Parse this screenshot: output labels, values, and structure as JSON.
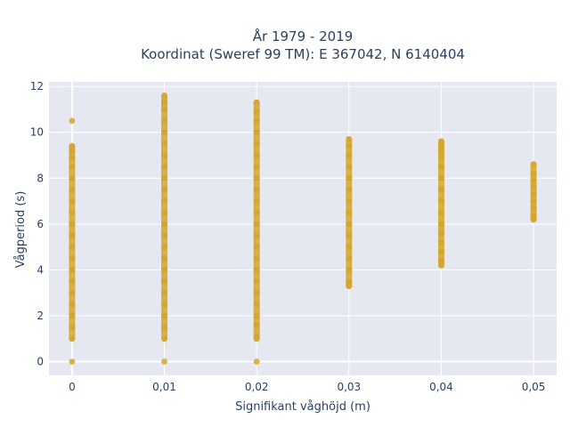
{
  "chart_data": {
    "type": "scatter",
    "title_line1": "År 1979 - 2019",
    "title_line2": "Koordinat (Sweref 99 TM): E 367042, N 6140404",
    "xlabel": "Signifikant våghöjd (m)",
    "ylabel": "Vågperiod (s)",
    "xlim": [
      -0.0025,
      0.0525
    ],
    "ylim": [
      -0.6,
      12.2
    ],
    "x_ticks": [
      {
        "value": 0,
        "label": "0"
      },
      {
        "value": 0.01,
        "label": "0,01"
      },
      {
        "value": 0.02,
        "label": "0,02"
      },
      {
        "value": 0.03,
        "label": "0,03"
      },
      {
        "value": 0.04,
        "label": "0,04"
      },
      {
        "value": 0.05,
        "label": "0,05"
      }
    ],
    "y_ticks": [
      {
        "value": 0,
        "label": "0"
      },
      {
        "value": 2,
        "label": "2"
      },
      {
        "value": 4,
        "label": "4"
      },
      {
        "value": 6,
        "label": "6"
      },
      {
        "value": 8,
        "label": "8"
      },
      {
        "value": 10,
        "label": "10"
      },
      {
        "value": 12,
        "label": "12"
      }
    ],
    "marker_color": "#d4a72c",
    "plot_bg_color": "#e5e8f0",
    "grid": true,
    "series": [
      {
        "points": [
          {
            "x": 0,
            "y": 0
          },
          {
            "x": 0,
            "y": 1.0
          },
          {
            "x": 0,
            "y": 1.5
          },
          {
            "x": 0,
            "y": 2.0
          },
          {
            "x": 0,
            "y": 2.5
          },
          {
            "x": 0,
            "y": 3.0
          },
          {
            "x": 0,
            "y": 3.5
          },
          {
            "x": 0,
            "y": 4.0
          },
          {
            "x": 0,
            "y": 4.5
          },
          {
            "x": 0,
            "y": 5.0
          },
          {
            "x": 0,
            "y": 5.5
          },
          {
            "x": 0,
            "y": 6.0
          },
          {
            "x": 0,
            "y": 6.5
          },
          {
            "x": 0,
            "y": 7.0
          },
          {
            "x": 0,
            "y": 7.5
          },
          {
            "x": 0,
            "y": 8.0
          },
          {
            "x": 0,
            "y": 8.5
          },
          {
            "x": 0,
            "y": 8.9
          },
          {
            "x": 0,
            "y": 9.2
          },
          {
            "x": 0,
            "y": 9.4
          },
          {
            "x": 0,
            "y": 10.5
          },
          {
            "x": 0.01,
            "y": 0
          },
          {
            "x": 0.01,
            "y": 1.0
          },
          {
            "x": 0.01,
            "y": 1.5
          },
          {
            "x": 0.01,
            "y": 2.0
          },
          {
            "x": 0.01,
            "y": 2.5
          },
          {
            "x": 0.01,
            "y": 3.0
          },
          {
            "x": 0.01,
            "y": 3.5
          },
          {
            "x": 0.01,
            "y": 4.0
          },
          {
            "x": 0.01,
            "y": 4.5
          },
          {
            "x": 0.01,
            "y": 5.0
          },
          {
            "x": 0.01,
            "y": 5.5
          },
          {
            "x": 0.01,
            "y": 6.0
          },
          {
            "x": 0.01,
            "y": 6.5
          },
          {
            "x": 0.01,
            "y": 7.0
          },
          {
            "x": 0.01,
            "y": 7.5
          },
          {
            "x": 0.01,
            "y": 8.0
          },
          {
            "x": 0.01,
            "y": 8.5
          },
          {
            "x": 0.01,
            "y": 9.0
          },
          {
            "x": 0.01,
            "y": 9.5
          },
          {
            "x": 0.01,
            "y": 10.0
          },
          {
            "x": 0.01,
            "y": 10.5
          },
          {
            "x": 0.01,
            "y": 11.0
          },
          {
            "x": 0.01,
            "y": 11.3
          },
          {
            "x": 0.01,
            "y": 11.6
          },
          {
            "x": 0.02,
            "y": 0
          },
          {
            "x": 0.02,
            "y": 1.0
          },
          {
            "x": 0.02,
            "y": 1.1
          },
          {
            "x": 0.02,
            "y": 1.6
          },
          {
            "x": 0.02,
            "y": 2.0
          },
          {
            "x": 0.02,
            "y": 2.5
          },
          {
            "x": 0.02,
            "y": 3.0
          },
          {
            "x": 0.02,
            "y": 3.5
          },
          {
            "x": 0.02,
            "y": 4.0
          },
          {
            "x": 0.02,
            "y": 4.5
          },
          {
            "x": 0.02,
            "y": 5.0
          },
          {
            "x": 0.02,
            "y": 5.5
          },
          {
            "x": 0.02,
            "y": 6.0
          },
          {
            "x": 0.02,
            "y": 6.5
          },
          {
            "x": 0.02,
            "y": 7.0
          },
          {
            "x": 0.02,
            "y": 7.5
          },
          {
            "x": 0.02,
            "y": 8.0
          },
          {
            "x": 0.02,
            "y": 8.5
          },
          {
            "x": 0.02,
            "y": 9.0
          },
          {
            "x": 0.02,
            "y": 9.5
          },
          {
            "x": 0.02,
            "y": 10.0
          },
          {
            "x": 0.02,
            "y": 10.5
          },
          {
            "x": 0.02,
            "y": 10.9
          },
          {
            "x": 0.02,
            "y": 11.3
          },
          {
            "x": 0.03,
            "y": 3.3
          },
          {
            "x": 0.03,
            "y": 3.5
          },
          {
            "x": 0.03,
            "y": 4.0
          },
          {
            "x": 0.03,
            "y": 4.5
          },
          {
            "x": 0.03,
            "y": 5.0
          },
          {
            "x": 0.03,
            "y": 5.5
          },
          {
            "x": 0.03,
            "y": 6.0
          },
          {
            "x": 0.03,
            "y": 6.5
          },
          {
            "x": 0.03,
            "y": 7.0
          },
          {
            "x": 0.03,
            "y": 7.5
          },
          {
            "x": 0.03,
            "y": 8.0
          },
          {
            "x": 0.03,
            "y": 8.5
          },
          {
            "x": 0.03,
            "y": 9.0
          },
          {
            "x": 0.03,
            "y": 9.4
          },
          {
            "x": 0.03,
            "y": 9.7
          },
          {
            "x": 0.04,
            "y": 4.2
          },
          {
            "x": 0.04,
            "y": 4.4
          },
          {
            "x": 0.04,
            "y": 4.8
          },
          {
            "x": 0.04,
            "y": 5.2
          },
          {
            "x": 0.04,
            "y": 5.6
          },
          {
            "x": 0.04,
            "y": 6.0
          },
          {
            "x": 0.04,
            "y": 6.5
          },
          {
            "x": 0.04,
            "y": 7.0
          },
          {
            "x": 0.04,
            "y": 7.5
          },
          {
            "x": 0.04,
            "y": 8.0
          },
          {
            "x": 0.04,
            "y": 8.5
          },
          {
            "x": 0.04,
            "y": 8.9
          },
          {
            "x": 0.04,
            "y": 9.2
          },
          {
            "x": 0.04,
            "y": 9.4
          },
          {
            "x": 0.04,
            "y": 9.6
          },
          {
            "x": 0.05,
            "y": 6.2
          },
          {
            "x": 0.05,
            "y": 6.35
          },
          {
            "x": 0.05,
            "y": 6.7
          },
          {
            "x": 0.05,
            "y": 7.0
          },
          {
            "x": 0.05,
            "y": 7.3
          },
          {
            "x": 0.05,
            "y": 7.6
          },
          {
            "x": 0.05,
            "y": 7.9
          },
          {
            "x": 0.05,
            "y": 8.2
          },
          {
            "x": 0.05,
            "y": 8.6
          }
        ]
      }
    ]
  }
}
